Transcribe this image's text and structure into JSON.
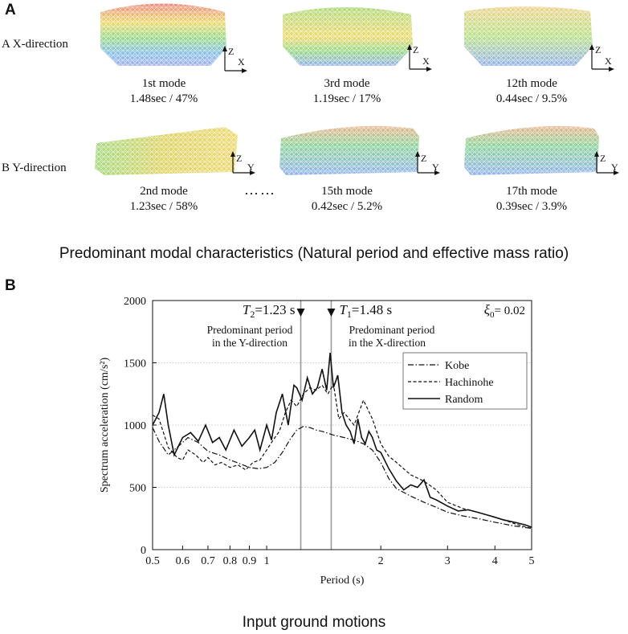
{
  "panelA": {
    "letter": "A",
    "rows": [
      {
        "label": "A  X-direction",
        "modes": [
          {
            "name": "1st mode",
            "stats": "1.48sec / 47%",
            "axes": [
              "Z",
              "X"
            ]
          },
          {
            "name": "3rd mode",
            "stats": "1.19sec / 17%",
            "axes": [
              "Z",
              "X"
            ]
          },
          {
            "name": "12th mode",
            "stats": "0.44sec / 9.5%",
            "axes": [
              "Z",
              "X"
            ]
          }
        ]
      },
      {
        "label": "B  Y-direction",
        "modes": [
          {
            "name": "2nd mode",
            "stats": "1.23sec / 58%",
            "axes": [
              "Z",
              "Y"
            ]
          },
          {
            "name": "15th mode",
            "stats": "0.42sec / 5.2%",
            "axes": [
              "Z",
              "Y"
            ]
          },
          {
            "name": "17th mode",
            "stats": "0.39sec / 3.9%",
            "axes": [
              "Z",
              "Y"
            ]
          }
        ]
      }
    ],
    "ellipsis": "……",
    "caption": "Predominant modal characteristics (Natural period and effective mass ratio)"
  },
  "panelB": {
    "letter": "B",
    "caption": "Input ground motions"
  },
  "colors": {
    "kobe": "#111111",
    "hachinohe": "#111111",
    "random": "#111111",
    "marker": "#999999",
    "grid": "#bbbbbb"
  },
  "chart_data": {
    "type": "line",
    "title": "",
    "xlabel": "Period (s)",
    "ylabel": "Spectrum acceleration (cm/s²)",
    "xscale": "log",
    "xlim": [
      0.5,
      5
    ],
    "ylim": [
      0,
      2000
    ],
    "xticks": [
      0.5,
      0.6,
      0.7,
      0.8,
      0.9,
      1,
      2,
      3,
      4,
      5
    ],
    "xtick_labels": [
      "0.5",
      "0.6",
      "0.7",
      "0.8",
      "0.9",
      "1",
      "2",
      "3",
      "4",
      "5"
    ],
    "yticks": [
      0,
      500,
      1000,
      1500,
      2000
    ],
    "ytick_labels": [
      "0",
      "500",
      "1000",
      "1500",
      "2000"
    ],
    "damping": {
      "symbol": "ξ",
      "sub": "0",
      "text": "= 0.02"
    },
    "markers": [
      {
        "x": 1.23,
        "sym": "T",
        "sub": "2",
        "value": "=1.23 s",
        "desc1": "Predominant period",
        "desc2": "in the Y-direction"
      },
      {
        "x": 1.48,
        "sym": "T",
        "sub": "1",
        "value": "=1.48 s",
        "desc1": "Predominant period",
        "desc2": "in the X-direction"
      }
    ],
    "legend": {
      "position": "top-right",
      "entries": [
        "Kobe",
        "Hachinohe",
        "Random"
      ]
    },
    "series": [
      {
        "name": "Kobe",
        "dash": "dashdot",
        "x": [
          0.5,
          0.52,
          0.55,
          0.58,
          0.62,
          0.66,
          0.7,
          0.75,
          0.8,
          0.85,
          0.9,
          0.95,
          1.0,
          1.05,
          1.1,
          1.15,
          1.2,
          1.25,
          1.3,
          1.35,
          1.4,
          1.5,
          1.6,
          1.7,
          1.8,
          1.9,
          2.0,
          2.1,
          2.2,
          2.4,
          2.6,
          2.8,
          3.0,
          3.3,
          3.6,
          4.0,
          4.5,
          5.0
        ],
        "y": [
          980,
          870,
          760,
          820,
          900,
          860,
          790,
          760,
          720,
          690,
          660,
          650,
          660,
          700,
          780,
          880,
          960,
          990,
          980,
          960,
          950,
          920,
          900,
          880,
          850,
          800,
          700,
          570,
          490,
          430,
          380,
          340,
          300,
          270,
          250,
          220,
          190,
          170
        ]
      },
      {
        "name": "Hachinohe",
        "dash": "dashed",
        "x": [
          0.5,
          0.52,
          0.55,
          0.58,
          0.6,
          0.62,
          0.65,
          0.68,
          0.7,
          0.73,
          0.76,
          0.8,
          0.84,
          0.88,
          0.92,
          0.96,
          1.0,
          1.04,
          1.08,
          1.12,
          1.16,
          1.2,
          1.25,
          1.3,
          1.35,
          1.4,
          1.45,
          1.5,
          1.55,
          1.6,
          1.7,
          1.8,
          1.9,
          2.0,
          2.1,
          2.2,
          2.4,
          2.6,
          2.8,
          3.0,
          3.3,
          3.6,
          3.9,
          4.2,
          4.6,
          5.0
        ],
        "y": [
          1080,
          1050,
          820,
          740,
          720,
          800,
          760,
          700,
          740,
          680,
          700,
          660,
          680,
          640,
          700,
          720,
          800,
          880,
          950,
          1100,
          1200,
          1150,
          1250,
          1300,
          1280,
          1320,
          1250,
          1330,
          1050,
          1100,
          1000,
          1200,
          1050,
          850,
          750,
          700,
          600,
          550,
          480,
          380,
          330,
          300,
          270,
          240,
          200,
          170
        ]
      },
      {
        "name": "Random",
        "dash": "solid",
        "x": [
          0.5,
          0.52,
          0.535,
          0.55,
          0.57,
          0.6,
          0.63,
          0.66,
          0.69,
          0.72,
          0.75,
          0.78,
          0.82,
          0.86,
          0.9,
          0.93,
          0.96,
          1.0,
          1.03,
          1.06,
          1.1,
          1.14,
          1.18,
          1.2,
          1.24,
          1.28,
          1.32,
          1.36,
          1.4,
          1.44,
          1.47,
          1.5,
          1.54,
          1.58,
          1.62,
          1.66,
          1.7,
          1.74,
          1.78,
          1.82,
          1.86,
          1.9,
          1.95,
          2.0,
          2.1,
          2.2,
          2.3,
          2.4,
          2.5,
          2.6,
          2.7,
          2.8,
          3.0,
          3.2,
          3.4,
          3.6,
          3.8,
          4.0,
          4.2,
          4.5,
          4.8,
          5.0
        ],
        "y": [
          1000,
          1100,
          1250,
          1000,
          760,
          900,
          940,
          870,
          1000,
          860,
          900,
          800,
          960,
          830,
          900,
          960,
          800,
          1000,
          880,
          1100,
          1250,
          1000,
          1320,
          1300,
          1200,
          1380,
          1250,
          1300,
          1450,
          1280,
          1580,
          1300,
          1400,
          1100,
          1000,
          950,
          850,
          1050,
          900,
          850,
          950,
          900,
          800,
          780,
          650,
          550,
          480,
          520,
          500,
          560,
          420,
          400,
          350,
          310,
          320,
          300,
          280,
          260,
          240,
          220,
          200,
          180
        ]
      }
    ]
  }
}
